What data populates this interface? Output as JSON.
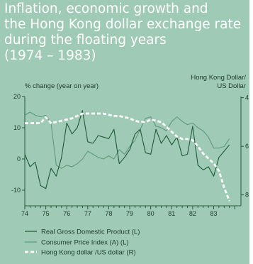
{
  "title": "Inflation, economic growth and\nthe Hong Kong dollar exchange rate\nduring the floating years\n(1974 – 1983)",
  "chart_data": {
    "type": "line",
    "yleft_label": "% change (year on year)",
    "yright_label_line1": "Hong Kong Dollar/",
    "yright_label_line2": "US Dollar",
    "yleft_ticks": [
      "20",
      "10",
      "0",
      "-10"
    ],
    "yleft_lim": [
      -15,
      20
    ],
    "yright_ticks": [
      "4",
      "6",
      "8"
    ],
    "yright_lim": [
      3.95,
      8.45
    ],
    "xlim": [
      1974,
      1984.3
    ],
    "x_ticks": [
      {
        "label": "74",
        "x": 1974
      },
      {
        "label": "75",
        "x": 1975
      },
      {
        "label": "76",
        "x": 1976
      },
      {
        "label": "77",
        "x": 1977
      },
      {
        "label": "78",
        "x": 1978
      },
      {
        "label": "79",
        "x": 1979
      },
      {
        "label": "80",
        "x": 1980
      },
      {
        "label": "81",
        "x": 1981
      },
      {
        "label": "82",
        "x": 1982
      },
      {
        "label": "83",
        "x": 1983
      }
    ],
    "series": [
      {
        "name": "Real Gross Domestic Product (L)",
        "axis": "left",
        "color": "#1f5a36",
        "style": "solid",
        "x": [
          1974.0,
          1974.25,
          1974.5,
          1974.75,
          1975.0,
          1975.25,
          1975.5,
          1975.75,
          1976.0,
          1976.25,
          1976.5,
          1976.75,
          1977.0,
          1977.25,
          1977.5,
          1977.75,
          1978.0,
          1978.25,
          1978.5,
          1978.75,
          1979.0,
          1979.25,
          1979.5,
          1979.75,
          1980.0,
          1980.25,
          1980.5,
          1980.75,
          1981.0,
          1981.25,
          1981.5,
          1981.75,
          1982.0,
          1982.25,
          1982.5,
          1982.75,
          1983.0,
          1983.25,
          1983.5,
          1983.75
        ],
        "values": [
          1.5,
          -2.5,
          -1.0,
          -8.5,
          -9.5,
          -3.0,
          -5.5,
          0.5,
          11.5,
          8.0,
          10.0,
          15.5,
          5.5,
          5.0,
          7.5,
          7.0,
          6.5,
          9.5,
          -1.5,
          0.5,
          3.0,
          8.0,
          9.5,
          2.0,
          1.5,
          9.5,
          5.0,
          7.5,
          4.5,
          7.0,
          1.0,
          1.5,
          10.5,
          -2.0,
          -3.5,
          -2.5,
          -5.5,
          0.5,
          2.5,
          4.5
        ]
      },
      {
        "name": "Consumer Price Index (A) (L)",
        "axis": "left",
        "color": "#5f9a79",
        "style": "solid",
        "x": [
          1974.0,
          1974.25,
          1974.5,
          1974.75,
          1975.0,
          1975.25,
          1975.5,
          1975.75,
          1976.0,
          1976.25,
          1976.5,
          1976.75,
          1977.0,
          1977.25,
          1977.5,
          1977.75,
          1978.0,
          1978.25,
          1978.5,
          1978.75,
          1979.0,
          1979.25,
          1979.5,
          1979.75,
          1980.0,
          1980.25,
          1980.5,
          1980.75,
          1981.0,
          1981.25,
          1981.5,
          1981.75,
          1982.0,
          1982.25,
          1982.5,
          1982.75,
          1983.0,
          1983.25,
          1983.5,
          1983.75
        ],
        "values": [
          14.0,
          15.0,
          14.0,
          13.5,
          14.0,
          11.5,
          -2.0,
          -3.0,
          -2.0,
          -2.5,
          -1.5,
          0.0,
          2.5,
          1.5,
          0.5,
          0.0,
          1.0,
          0.0,
          3.0,
          1.5,
          4.0,
          6.0,
          9.5,
          13.0,
          13.5,
          10.5,
          10.0,
          9.0,
          12.0,
          13.5,
          12.0,
          11.0,
          11.5,
          10.0,
          9.0,
          7.0,
          3.5,
          3.5,
          4.0,
          6.5
        ]
      },
      {
        "name": "Hong Kong dollar /US dollar (R)",
        "axis": "right",
        "color": "#ffffff",
        "style": "dashed",
        "x": [
          1974.0,
          1974.25,
          1974.5,
          1974.75,
          1975.0,
          1975.25,
          1975.5,
          1975.75,
          1976.0,
          1976.25,
          1976.5,
          1976.75,
          1977.0,
          1977.25,
          1977.5,
          1977.75,
          1978.0,
          1978.25,
          1978.5,
          1978.75,
          1979.0,
          1979.25,
          1979.5,
          1979.75,
          1980.0,
          1980.25,
          1980.5,
          1980.75,
          1981.0,
          1981.25,
          1981.5,
          1981.75,
          1982.0,
          1982.25,
          1982.5,
          1982.75,
          1983.0,
          1983.25,
          1983.5,
          1983.75
        ],
        "values": [
          5.05,
          5.05,
          5.05,
          5.05,
          4.8,
          5.05,
          5.0,
          4.95,
          4.9,
          4.85,
          4.75,
          4.65,
          4.65,
          4.65,
          4.65,
          4.65,
          4.7,
          4.75,
          4.75,
          4.8,
          4.85,
          4.95,
          5.0,
          5.0,
          4.9,
          4.95,
          5.0,
          5.2,
          5.4,
          5.6,
          5.7,
          5.7,
          5.75,
          6.0,
          6.3,
          6.5,
          6.7,
          7.0,
          7.7,
          8.25
        ]
      }
    ],
    "legend": "bottom"
  }
}
